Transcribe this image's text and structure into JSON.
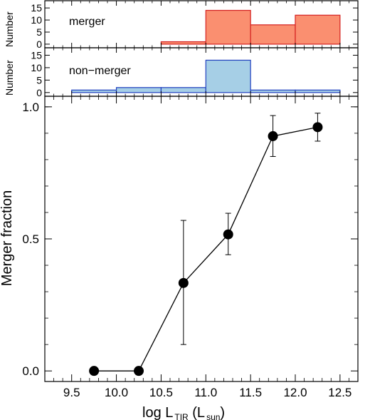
{
  "chart_data": [
    {
      "type": "bar",
      "panel": "top",
      "label": "merger",
      "ylabel": "Number",
      "bin_edges": [
        9.5,
        10.0,
        10.5,
        11.0,
        11.5,
        12.0,
        12.5
      ],
      "values": [
        0,
        0,
        1,
        14,
        8,
        12
      ],
      "ylim": [
        -1.5,
        18
      ],
      "yticks": [
        "0",
        "5",
        "10",
        "15"
      ],
      "fill_color": "#fa8f70",
      "edge_color": "#d42020",
      "label_color": "#d42020"
    },
    {
      "type": "bar",
      "panel": "middle",
      "label": "non−merger",
      "ylabel": "Number",
      "bin_edges": [
        9.5,
        10.0,
        10.5,
        11.0,
        11.5,
        12.0,
        12.5
      ],
      "values": [
        1,
        2,
        2,
        13,
        1,
        1
      ],
      "ylim": [
        -1.5,
        18
      ],
      "yticks": [
        "0",
        "5",
        "10",
        "15"
      ],
      "fill_color": "#a6cfe6",
      "edge_color": "#1f3fbf",
      "label_color": "#1f2fa0"
    },
    {
      "type": "scatter",
      "panel": "bottom",
      "x": [
        9.75,
        10.25,
        10.75,
        11.25,
        11.75,
        12.25
      ],
      "y": [
        0.0,
        0.0,
        0.333,
        0.517,
        0.889,
        0.923
      ],
      "y_err_low": [
        0.0,
        0.0,
        0.233,
        0.077,
        0.077,
        0.053
      ],
      "y_err_high": [
        0.0,
        0.0,
        0.237,
        0.08,
        0.078,
        0.053
      ],
      "connected": true,
      "marker": "filled-circle",
      "color": "#000000",
      "xlim": [
        9.2,
        12.7
      ],
      "ylim": [
        -0.04,
        1.04
      ],
      "xticks": [
        "9.5",
        "10.0",
        "10.5",
        "11.0",
        "11.5",
        "12.0",
        "12.5"
      ],
      "yticks": [
        "0.0",
        "0.5",
        "1.0"
      ],
      "ylabel": "Merger fraction",
      "xlabel_main": "log L",
      "xlabel_sub1": "TIR",
      "xlabel_mid": " (L",
      "xlabel_sub2": "sun",
      "xlabel_end": ")"
    }
  ]
}
